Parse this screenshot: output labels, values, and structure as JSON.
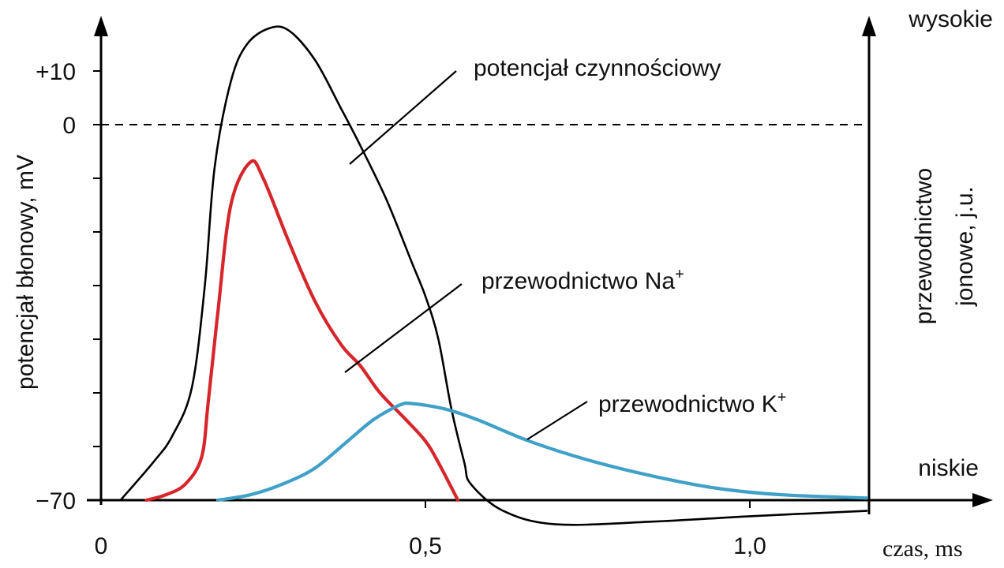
{
  "chart_data": {
    "type": "line",
    "xlabel": "czas, ms",
    "ylabel_left": "potencjał błonowy, mV",
    "ylabel_right_line1": "przewodnictwo",
    "ylabel_right_line2": "jonowe, j.u.",
    "right_axis_top_label": "wysokie",
    "right_axis_bottom_label": "niskie",
    "x_ticks": [
      {
        "value": 0,
        "label": "0"
      },
      {
        "value": 0.5,
        "label": "0,5"
      },
      {
        "value": 1.0,
        "label": "1,0"
      }
    ],
    "y_ticks": [
      {
        "value": 10,
        "label": "+10"
      },
      {
        "value": 0,
        "label": "0"
      },
      {
        "value": -10,
        "label": ""
      },
      {
        "value": -20,
        "label": ""
      },
      {
        "value": -30,
        "label": ""
      },
      {
        "value": -40,
        "label": ""
      },
      {
        "value": -50,
        "label": ""
      },
      {
        "value": -60,
        "label": ""
      },
      {
        "value": -70,
        "label": "−70"
      }
    ],
    "xlim": [
      0,
      1.18
    ],
    "ylim": [
      -74,
      19
    ],
    "zero_reference_line": 0,
    "series": [
      {
        "name": "potencjał czynnościowy",
        "axis": "left",
        "color": "#000000",
        "points": [
          [
            0.03,
            -70
          ],
          [
            0.08,
            -63
          ],
          [
            0.11,
            -58
          ],
          [
            0.14,
            -49
          ],
          [
            0.16,
            -30
          ],
          [
            0.175,
            -8
          ],
          [
            0.2,
            8
          ],
          [
            0.225,
            15
          ],
          [
            0.26,
            18
          ],
          [
            0.29,
            17.5
          ],
          [
            0.33,
            12
          ],
          [
            0.37,
            3
          ],
          [
            0.4,
            -4
          ],
          [
            0.44,
            -14
          ],
          [
            0.48,
            -26
          ],
          [
            0.5,
            -32
          ],
          [
            0.52,
            -40
          ],
          [
            0.54,
            -53
          ],
          [
            0.56,
            -63
          ],
          [
            0.57,
            -67
          ],
          [
            0.62,
            -72
          ],
          [
            0.7,
            -74.5
          ],
          [
            0.85,
            -74
          ],
          [
            1.0,
            -73
          ],
          [
            1.18,
            -72
          ]
        ]
      },
      {
        "name": "przewodnictwo Na+",
        "axis": "right",
        "color": "#d6262b",
        "points": [
          [
            0.07,
            -70
          ],
          [
            0.1,
            -69
          ],
          [
            0.13,
            -67
          ],
          [
            0.155,
            -62
          ],
          [
            0.165,
            -52
          ],
          [
            0.18,
            -35
          ],
          [
            0.2,
            -15
          ],
          [
            0.23,
            -7
          ],
          [
            0.25,
            -10
          ],
          [
            0.29,
            -22
          ],
          [
            0.33,
            -33
          ],
          [
            0.37,
            -41
          ],
          [
            0.4,
            -45
          ],
          [
            0.43,
            -50
          ],
          [
            0.47,
            -55
          ],
          [
            0.5,
            -59
          ],
          [
            0.52,
            -63
          ],
          [
            0.55,
            -70
          ]
        ]
      },
      {
        "name": "przewodnictwo K+",
        "axis": "right",
        "color": "#3fa0c8",
        "points": [
          [
            0.18,
            -70
          ],
          [
            0.23,
            -69
          ],
          [
            0.28,
            -67
          ],
          [
            0.33,
            -64
          ],
          [
            0.38,
            -59
          ],
          [
            0.42,
            -55
          ],
          [
            0.46,
            -52.3
          ],
          [
            0.48,
            -52
          ],
          [
            0.53,
            -53
          ],
          [
            0.58,
            -55
          ],
          [
            0.66,
            -59
          ],
          [
            0.75,
            -62.5
          ],
          [
            0.85,
            -65.5
          ],
          [
            0.95,
            -67.8
          ],
          [
            1.05,
            -69
          ],
          [
            1.18,
            -69.6
          ]
        ]
      }
    ],
    "annotations": [
      {
        "text": "potencjał czynnościowy",
        "series": 0,
        "sup": ""
      },
      {
        "text": "przewodnictwo Na",
        "series": 1,
        "sup": "+"
      },
      {
        "text": "przewodnictwo K",
        "series": 2,
        "sup": "+"
      }
    ]
  }
}
